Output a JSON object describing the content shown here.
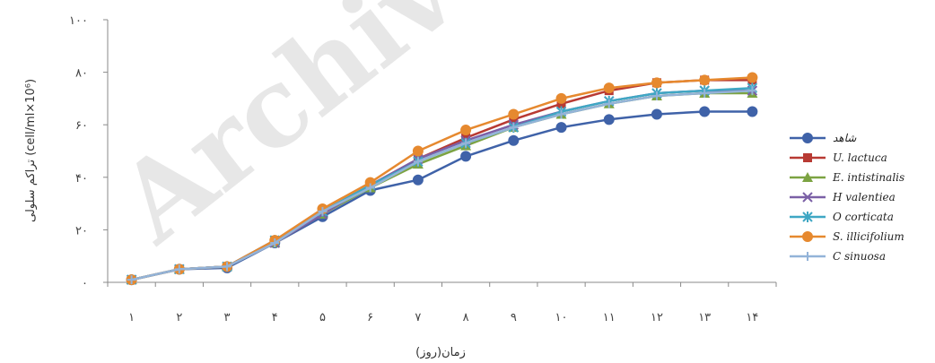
{
  "chart_data": {
    "type": "line",
    "x": [
      "١",
      "٢",
      "٣",
      "۴",
      "۵",
      "۶",
      "٧",
      "٨",
      "٩",
      "١٠",
      "١١",
      "١٢",
      "١٣",
      "١۴"
    ],
    "ylim": [
      0,
      100
    ],
    "yticks": [
      "٠",
      "٢٠",
      "۴٠",
      "۶٠",
      "٨٠",
      "١٠٠"
    ],
    "ylabel": "تراکم سلولی (cell/ml×10⁶)",
    "xlabel": "زمان(روز)",
    "grid": false,
    "legend_position": "right",
    "watermark": "Archive",
    "series": [
      {
        "name": "شاهد",
        "color": "#3f62a8",
        "marker": "circle",
        "values": [
          1,
          5,
          5.5,
          15,
          25,
          35,
          39,
          48,
          54,
          59,
          62,
          64,
          65,
          65
        ]
      },
      {
        "name": "U. lactuca",
        "color": "#b83a33",
        "marker": "square",
        "values": [
          1,
          5,
          6,
          16,
          27,
          37,
          47,
          55,
          62,
          68,
          73,
          76,
          77,
          77
        ]
      },
      {
        "name": "E. intistinalis",
        "color": "#7ca342",
        "marker": "triangle",
        "values": [
          1,
          5,
          6,
          15,
          26,
          36,
          45,
          52,
          59,
          64,
          68,
          71,
          72,
          72
        ]
      },
      {
        "name": "H valentiea",
        "color": "#7b60a6",
        "marker": "x",
        "values": [
          1,
          5,
          6,
          15,
          26,
          37,
          47,
          54,
          60,
          65,
          69,
          72,
          73,
          73
        ]
      },
      {
        "name": "O corticata",
        "color": "#3fa7c4",
        "marker": "star",
        "values": [
          1,
          5,
          6,
          16,
          27,
          37,
          46,
          53,
          59,
          65,
          69,
          72,
          73,
          74
        ]
      },
      {
        "name": "S. illicifolium",
        "color": "#e6892f",
        "marker": "circle",
        "values": [
          1,
          5,
          6,
          16,
          28,
          38,
          50,
          58,
          64,
          70,
          74,
          76,
          77,
          78
        ]
      },
      {
        "name": "C sinuosa",
        "color": "#93b3d8",
        "marker": "plus",
        "values": [
          1,
          5,
          6,
          15,
          27,
          36,
          46,
          53,
          59,
          64,
          68,
          71,
          72,
          73
        ]
      }
    ]
  }
}
